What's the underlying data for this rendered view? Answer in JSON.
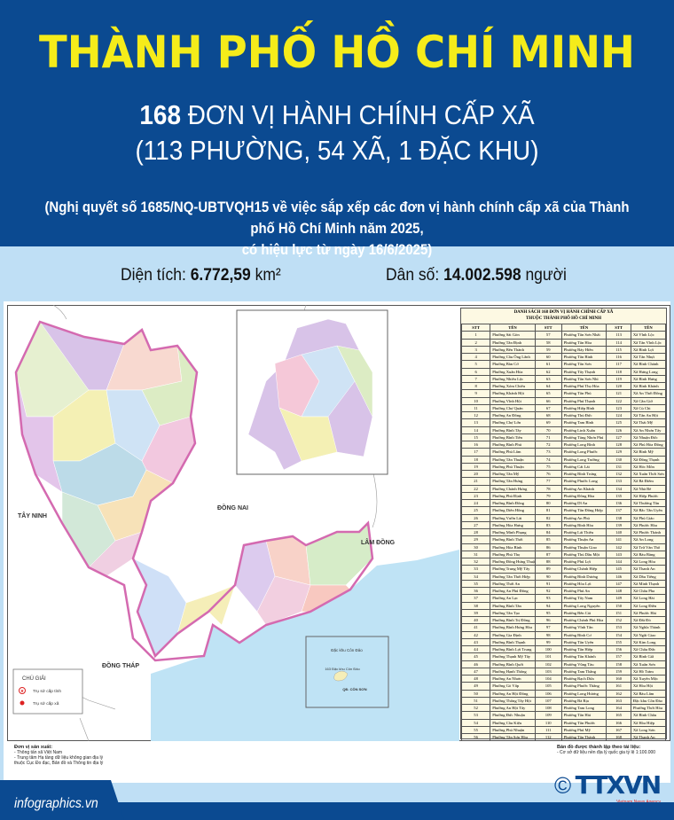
{
  "header": {
    "title": "THÀNH PHỐ HỒ CHÍ MINH",
    "count": "168",
    "subtitle_rest": "ĐƠN VỊ HÀNH CHÍNH CẤP XÃ",
    "subtitle2": "(113 PHƯỜNG, 54 XÃ, 1 ĐẶC KHU)",
    "note_line1": "(Nghị quyết số 1685/NQ-UBTVQH15 về việc sắp xếp các đơn vị hành chính cấp xã của Thành phố Hồ Chí Minh năm 2025,",
    "note_line2": "có hiệu lực từ ngày 16/6/2025)"
  },
  "stats": {
    "area_label": "Diện tích:",
    "area_value": "6.772,59",
    "area_unit": "km²",
    "pop_label": "Dân số:",
    "pop_value": "14.002.598",
    "pop_unit": "người"
  },
  "map": {
    "neighbors": [
      "TÂY NINH",
      "ĐỒNG NAI",
      "LÂM ĐỒNG",
      "ĐỒNG THÁP"
    ],
    "con_dao_title": "Đặc khu Côn Đảo",
    "con_dao_label": "163 Đặc khu Côn Đảo",
    "con_son": "QĐ. CÔN SƠN",
    "border_color": "#d46ab0",
    "sea_color": "#bfe3f5",
    "legend": {
      "title": "CHÚ GIẢI",
      "items": [
        {
          "icon": "star-circle-icon",
          "label": "Trụ sở cấp tỉnh"
        },
        {
          "icon": "red-dot-icon",
          "label": "Trụ sở cấp xã"
        }
      ]
    }
  },
  "table": {
    "title1": "DANH SÁCH 168 ĐƠN VỊ HÀNH CHÍNH CẤP XÃ",
    "title2": "THUỘC THÀNH PHỐ HỒ CHÍ MINH",
    "col_stt": "STT",
    "col_name": "TÊN",
    "col1": [
      "Phường Sài Gòn",
      "Phường Tân Định",
      "Phường Bến Thành",
      "Phường Cầu Ông Lãnh",
      "Phường Bàn Cờ",
      "Phường Xuân Hòa",
      "Phường Nhiêu Lộc",
      "Phường Xóm Chiếu",
      "Phường Khánh Hội",
      "Phường Vĩnh Hội",
      "Phường Chợ Quán",
      "Phường An Đông",
      "Phường Chợ Lớn",
      "Phường Bình Tây",
      "Phường Bình Tiên",
      "Phường Bình Phú",
      "Phường Phú Lâm",
      "Phường Tân Thuận",
      "Phường Phú Thuận",
      "Phường Tân Mỹ",
      "Phường Tân Hưng",
      "Phường Chánh Hưng",
      "Phường Phú Định",
      "Phường Bình Đông",
      "Phường Diên Hồng",
      "Phường Vườn Lài",
      "Phường Hòa Hưng",
      "Phường Minh Phụng",
      "Phường Bình Thới",
      "Phường Hòa Bình",
      "Phường Phú Thọ",
      "Phường Đông Hưng Thuận",
      "Phường Trung Mỹ Tây",
      "Phường Tân Thới Hiệp",
      "Phường Thới An",
      "Phường An Phú Đông",
      "Phường An Lạc",
      "Phường Bình Tân",
      "Phường Tân Tạo",
      "Phường Bình Trị Đông",
      "Phường Bình Hưng Hòa",
      "Phường Gia Định",
      "Phường Bình Thạnh",
      "Phường Bình Lợi Trung",
      "Phường Thạnh Mỹ Tây",
      "Phường Bình Quới",
      "Phường Hạnh Thông",
      "Phường An Nhơn",
      "Phường Gò Vấp",
      "Phường An Hội Đông",
      "Phường Thông Tây Hội",
      "Phường An Hội Tây",
      "Phường Đức Nhuận",
      "Phường Cầu Kiệu",
      "Phường Phú Nhuận",
      "Phường Tân Sơn Hòa"
    ],
    "col2": [
      "Phường Tân Sơn Nhất",
      "Phường Tân Hòa",
      "Phường Bảy Hiền",
      "Phường Tân Bình",
      "Phường Tân Sơn",
      "Phường Tây Thạnh",
      "Phường Tân Sơn Nhì",
      "Phường Phú Thọ Hòa",
      "Phường Tân Phú",
      "Phường Phú Thạnh",
      "Phường Hiệp Bình",
      "Phường Thủ Đức",
      "Phường Tam Bình",
      "Phường Linh Xuân",
      "Phường Tăng Nhơn Phú",
      "Phường Long Bình",
      "Phường Long Phước",
      "Phường Long Trường",
      "Phường Cát Lái",
      "Phường Bình Trưng",
      "Phường Phước Long",
      "Phường An Khánh",
      "Phường Đông Hòa",
      "Phường Dĩ An",
      "Phường Tân Đông Hiệp",
      "Phường An Phú",
      "Phường Bình Hòa",
      "Phường Lái Thiêu",
      "Phường Thuận An",
      "Phường Thuận Giao",
      "Phường Thủ Dầu Một",
      "Phường Phú Lợi",
      "Phường Chánh Hiệp",
      "Phường Bình Dương",
      "Phường Hòa Lợi",
      "Phường Phú An",
      "Phường Tây Nam",
      "Phường Long Nguyên",
      "Phường Bến Cát",
      "Phường Chánh Phú Hòa",
      "Phường Vĩnh Tân",
      "Phường Bình Cơ",
      "Phường Tân Uyên",
      "Phường Tân Hiệp",
      "Phường Tân Khánh",
      "Phường Vũng Tàu",
      "Phường Tam Thắng",
      "Phường Rạch Dừa",
      "Phường Phước Thắng",
      "Phường Long Hương",
      "Phường Bà Rịa",
      "Phường Tam Long",
      "Phường Tân Hải",
      "Phường Tân Phước",
      "Phường Phú Mỹ",
      "Phường Tân Thành"
    ],
    "col3": [
      "Xã Vĩnh Lộc",
      "Xã Tân Vĩnh Lộc",
      "Xã Bình Lợi",
      "Xã Tân Nhựt",
      "Xã Bình Chánh",
      "Xã Hưng Long",
      "Xã Bình Hưng",
      "Xã Bình Khánh",
      "Xã An Thới Đông",
      "Xã Cần Giờ",
      "Xã Củ Chi",
      "Xã Tân An Hội",
      "Xã Thái Mỹ",
      "Xã An Nhơn Tây",
      "Xã Nhuận Đức",
      "Xã Phú Hòa Đông",
      "Xã Bình Mỹ",
      "Xã Đông Thạnh",
      "Xã Hóc Môn",
      "Xã Xuân Thới Sơn",
      "Xã Bà Điểm",
      "Xã Nhà Bè",
      "Xã Hiệp Phước",
      "Xã Thường Tân",
      "Xã Bắc Tân Uyên",
      "Xã Phú Giáo",
      "Xã Phước Hòa",
      "Xã Phước Thành",
      "Xã An Long",
      "Xã Trừ Văn Thố",
      "Xã Bàu Bàng",
      "Xã Long Hòa",
      "Xã Thanh An",
      "Xã Dầu Tiếng",
      "Xã Minh Thạnh",
      "Xã Châu Pha",
      "Xã Long Hải",
      "Xã Long Điền",
      "Xã Phước Hải",
      "Xã Đất Đỏ",
      "Xã Nghĩa Thành",
      "Xã Ngãi Giao",
      "Xã Kim Long",
      "Xã Châu Đức",
      "Xã Bình Giã",
      "Xã Xuân Sơn",
      "Xã Hồ Tràm",
      "Xã Xuyên Mộc",
      "Xã Hòa Hội",
      "Xã Bàu Lâm",
      "Đặc khu Côn Đảo",
      "Phường Thới Hòa",
      "Xã Bình Châu",
      "Xã Hòa Hiệp",
      "Xã Long Sơn",
      "Xã Thạnh An"
    ]
  },
  "notes": {
    "producer_title": "Đơn vị sản xuất:",
    "producer_lines": [
      "- Thông tấn xã Việt Nam",
      "- Trung tâm Hạ tầng dữ liệu không gian địa lý",
      "thuộc Cục Đo đạc, Bản đồ và Thông tin địa lý"
    ],
    "source_title": "Bản đồ được thành lập theo tài liệu:",
    "source_line": "- Cơ sở dữ liệu nền địa lý quốc gia tỷ lệ 1:100.000"
  },
  "footer": {
    "site": "infographics.vn",
    "copyright": "©",
    "logo": "TTXVN",
    "logo_sub": "Vietnam News Agency"
  },
  "colors": {
    "header_bg": "#0b4a91",
    "title": "#f5ec1a",
    "page_bg": "#bfdff5"
  }
}
